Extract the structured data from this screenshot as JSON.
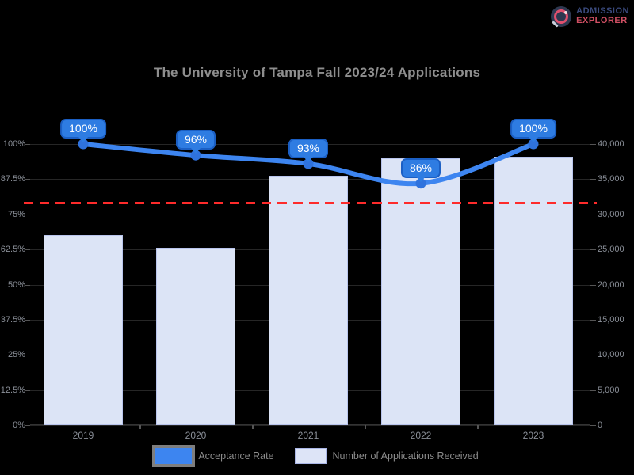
{
  "brand": {
    "line1": "ADMISSION",
    "line2": "EXPLORER",
    "icon": "magnifier-icon"
  },
  "title": "The University of Tampa Fall 2023/24 Applications",
  "chart_data": {
    "type": "combo",
    "categories": [
      "2019",
      "2020",
      "2021",
      "2022",
      "2023"
    ],
    "series": [
      {
        "name": "Acceptance Rate",
        "type": "line",
        "axis": "left",
        "unit": "%",
        "values": [
          100,
          96,
          93,
          86,
          100
        ],
        "point_labels": [
          "100%",
          "96%",
          "93%",
          "86%",
          "100%"
        ],
        "color": "#3d85f0"
      },
      {
        "name": "Number of Applications Received",
        "type": "bar",
        "axis": "right",
        "values": [
          27000,
          25200,
          35500,
          38000,
          38200
        ],
        "fill": "#dce4f6",
        "border": "#b9c5ed"
      }
    ],
    "left_axis": {
      "ticks": [
        "100%",
        "87.5%",
        "75%",
        "62.5%",
        "50%",
        "37.5%",
        "25%",
        "12.5%",
        "0%"
      ],
      "range": [
        0,
        100
      ]
    },
    "right_axis": {
      "ticks": [
        "40,000",
        "35,000",
        "30,000",
        "25,000",
        "20,000",
        "15,000",
        "10,000",
        "5,000",
        "0"
      ],
      "range": [
        0,
        40000
      ]
    },
    "reference_line": {
      "value_percent": 79,
      "color": "#fe2b2b",
      "style": "dashed"
    },
    "grid": true,
    "legend_position": "bottom"
  },
  "legend": {
    "items": [
      {
        "label": "Acceptance Rate",
        "swatch_color": "#3d85f0"
      },
      {
        "label": "Number of Applications Received",
        "swatch_color": "#dde4f7"
      }
    ]
  },
  "colors": {
    "background": "#000000",
    "title_text": "#8e8e8e",
    "axis_text": "#8a8f98",
    "line": "#3d85f0",
    "bar_fill": "#dce4f6",
    "bar_border": "#b9c5ed",
    "tooltip_bg": "#2e7ce2",
    "reference": "#fe2b2b",
    "brand_navy": "#3a4a7d",
    "brand_red": "#cf4f63"
  }
}
